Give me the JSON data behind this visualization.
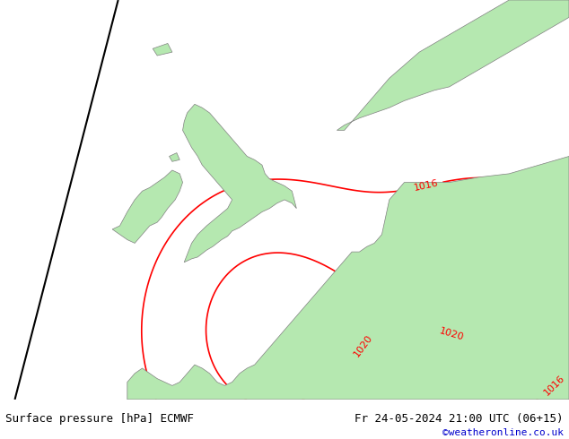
{
  "title_left": "Surface pressure [hPa] ECMWF",
  "title_right": "Fr 24-05-2024 21:00 UTC (06+15)",
  "credit": "©weatheronline.co.uk",
  "background_color": "#e8e8e8",
  "land_color": "#b5e8b0",
  "sea_color": "#dcdcdc",
  "fig_width": 6.34,
  "fig_height": 4.9,
  "dpi": 100,
  "bottom_bar_color": "#ffffff",
  "contour_colors": {
    "blue": "#0000ff",
    "black": "#000000",
    "red": "#ff0000"
  },
  "label_fontsize": 9,
  "title_fontsize": 9,
  "credit_fontsize": 8
}
